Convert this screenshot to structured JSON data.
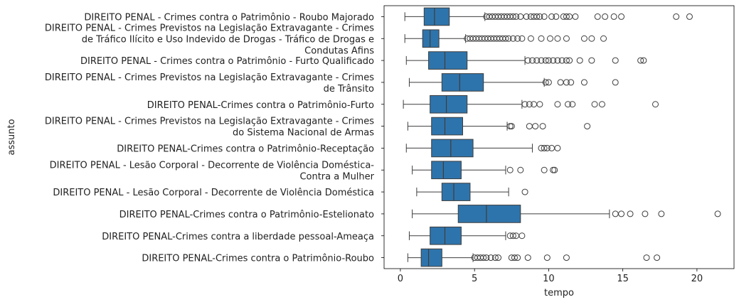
{
  "chart_data": {
    "type": "boxplot",
    "orientation": "horizontal",
    "xlabel": "tempo",
    "ylabel": "assunto",
    "xlim": [
      -1.1,
      22.5
    ],
    "xticks": [
      0,
      5,
      10,
      15,
      20
    ],
    "grid": false,
    "legend": "none",
    "colors": {
      "box": "#2e74ac",
      "line": "#3d3d3d"
    },
    "categories": [
      {
        "label_lines": [
          "DIREITO PENAL - Crimes contra o Patrimônio - Roubo Majorado"
        ],
        "whisker_low": 0.3,
        "q1": 1.6,
        "median": 2.3,
        "q3": 3.3,
        "whisker_high": 5.7,
        "outliers": [
          5.8,
          6.0,
          6.2,
          6.4,
          6.6,
          6.8,
          7.0,
          7.2,
          7.4,
          7.6,
          7.8,
          8.1,
          8.5,
          8.8,
          9.0,
          9.2,
          9.4,
          9.7,
          10.2,
          10.5,
          11.0,
          11.2,
          11.4,
          11.8,
          13.3,
          13.8,
          14.4,
          14.9,
          18.6,
          19.5
        ]
      },
      {
        "label_lines": [
          "DIREITO PENAL - Crimes Previstos na Legislação Extravagante - Crimes",
          "de Tráfico Ilícito e Uso Indevido de Drogas - Tráfico de Drogas e",
          "Condutas Afins"
        ],
        "whisker_low": 0.3,
        "q1": 1.5,
        "median": 2.0,
        "q3": 2.6,
        "whisker_high": 4.4,
        "outliers": [
          4.5,
          4.7,
          4.9,
          5.1,
          5.3,
          5.5,
          5.7,
          5.9,
          6.1,
          6.3,
          6.5,
          6.7,
          6.9,
          7.1,
          7.3,
          7.6,
          7.9,
          8.2,
          8.8,
          9.5,
          10.1,
          10.6,
          11.2,
          12.4,
          12.9,
          13.7
        ]
      },
      {
        "label_lines": [
          "DIREITO PENAL - Crimes contra o Patrimônio - Furto Qualificado"
        ],
        "whisker_low": 0.4,
        "q1": 1.9,
        "median": 3.0,
        "q3": 4.5,
        "whisker_high": 8.4,
        "outliers": [
          8.6,
          8.9,
          9.2,
          9.5,
          9.8,
          10.0,
          10.3,
          10.6,
          10.9,
          11.2,
          11.4,
          12.1,
          12.9,
          14.5,
          16.2,
          16.4
        ]
      },
      {
        "label_lines": [
          "DIREITO PENAL - Crimes Previstos na Legislação Extravagante - Crimes",
          "de Trânsito"
        ],
        "whisker_low": 0.6,
        "q1": 2.8,
        "median": 4.0,
        "q3": 5.6,
        "whisker_high": 9.7,
        "outliers": [
          9.8,
          10.0,
          10.8,
          11.2,
          11.5,
          12.4,
          14.5
        ]
      },
      {
        "label_lines": [
          "DIREITO PENAL-Crimes contra o Patrimônio-Furto"
        ],
        "whisker_low": 0.2,
        "q1": 2.0,
        "median": 3.1,
        "q3": 4.5,
        "whisker_high": 8.2,
        "outliers": [
          8.4,
          8.7,
          9.0,
          9.4,
          10.6,
          11.3,
          11.6,
          13.1,
          13.6,
          17.2
        ]
      },
      {
        "label_lines": [
          "DIREITO PENAL - Crimes Previstos na Legislação Extravagante - Crimes",
          "do Sistema Nacional de Armas"
        ],
        "whisker_low": 0.5,
        "q1": 2.1,
        "median": 3.0,
        "q3": 4.2,
        "whisker_high": 7.2,
        "outliers": [
          7.4,
          7.5,
          8.7,
          9.1,
          9.6,
          12.6
        ]
      },
      {
        "label_lines": [
          "DIREITO PENAL-Crimes contra o Patrimônio-Receptação"
        ],
        "whisker_low": 0.4,
        "q1": 2.1,
        "median": 3.4,
        "q3": 4.9,
        "whisker_high": 8.9,
        "outliers": [
          9.5,
          9.7,
          9.9,
          10.2,
          10.6
        ]
      },
      {
        "label_lines": [
          "DIREITO PENAL - Lesão Corporal - Decorrente de Violência Doméstica-",
          "Contra a Mulher"
        ],
        "whisker_low": 0.8,
        "q1": 2.1,
        "median": 2.9,
        "q3": 4.1,
        "whisker_high": 7.1,
        "outliers": [
          7.4,
          8.1,
          9.7,
          10.3,
          10.4
        ]
      },
      {
        "label_lines": [
          "DIREITO PENAL - Lesão Corporal - Decorrente de Violência Doméstica"
        ],
        "whisker_low": 1.1,
        "q1": 2.8,
        "median": 3.6,
        "q3": 4.7,
        "whisker_high": 7.3,
        "outliers": [
          8.4
        ]
      },
      {
        "label_lines": [
          "DIREITO PENAL-Crimes contra o Patrimônio-Estelionato"
        ],
        "whisker_low": 0.8,
        "q1": 3.9,
        "median": 5.8,
        "q3": 8.1,
        "whisker_high": 14.1,
        "outliers": [
          14.5,
          14.9,
          15.5,
          16.5,
          17.6,
          21.4
        ]
      },
      {
        "label_lines": [
          "DIREITO PENAL-Crimes contra a liberdade pessoal-Ameaça"
        ],
        "whisker_low": 0.6,
        "q1": 2.0,
        "median": 3.0,
        "q3": 4.1,
        "whisker_high": 7.1,
        "outliers": [
          7.4,
          7.6,
          7.8,
          8.2
        ]
      },
      {
        "label_lines": [
          "DIREITO PENAL-Crimes contra o Patrimônio-Roubo"
        ],
        "whisker_low": 0.5,
        "q1": 1.4,
        "median": 1.9,
        "q3": 2.8,
        "whisker_high": 4.9,
        "outliers": [
          5.0,
          5.2,
          5.4,
          5.6,
          5.8,
          6.1,
          6.4,
          6.6,
          7.5,
          7.7,
          7.9,
          8.6,
          9.9,
          11.2,
          16.6,
          17.3
        ]
      }
    ]
  }
}
